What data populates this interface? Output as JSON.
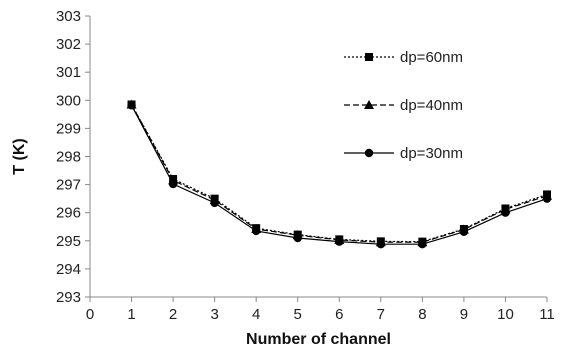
{
  "chart_data": {
    "type": "line",
    "title": "",
    "xlabel": "Number of channel",
    "ylabel": "T (K)",
    "xlim": [
      0,
      11
    ],
    "ylim": [
      293,
      303
    ],
    "xticks": [
      "0",
      "1",
      "2",
      "3",
      "4",
      "5",
      "6",
      "7",
      "8",
      "9",
      "10",
      "11"
    ],
    "yticks": [
      "293",
      "294",
      "295",
      "296",
      "297",
      "298",
      "299",
      "300",
      "301",
      "302",
      "303"
    ],
    "grid": false,
    "legend_position": "top-right",
    "x": [
      1,
      2,
      3,
      4,
      5,
      6,
      7,
      8,
      9,
      10,
      11
    ],
    "series": [
      {
        "name": "dp=60nm",
        "marker": "square",
        "line_style": "dotted",
        "values": [
          299.85,
          297.2,
          296.5,
          295.45,
          295.22,
          295.05,
          294.98,
          294.97,
          295.42,
          296.15,
          296.65
        ]
      },
      {
        "name": "dp=40nm",
        "marker": "triangle",
        "line_style": "dashed",
        "values": [
          299.85,
          297.15,
          296.45,
          295.42,
          295.2,
          295.03,
          294.95,
          294.95,
          295.4,
          296.12,
          296.6
        ]
      },
      {
        "name": "dp=30nm",
        "marker": "circle",
        "line_style": "solid",
        "values": [
          299.82,
          297.02,
          296.35,
          295.35,
          295.1,
          294.97,
          294.88,
          294.88,
          295.32,
          296.0,
          296.5
        ]
      }
    ],
    "colors": {
      "line": "#000000",
      "axis": "#888888"
    }
  }
}
